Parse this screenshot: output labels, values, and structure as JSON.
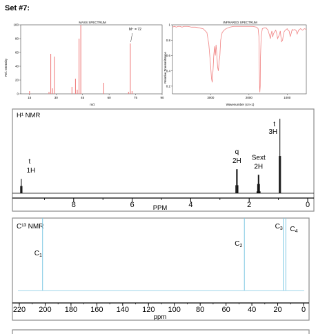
{
  "page": {
    "set_title": "Set #7:"
  },
  "chart_data": [
    {
      "type": "bar",
      "title": "MASS SPECTRUM",
      "xlabel": "m/z",
      "ylabel": "Rel. Intensity",
      "xlim": [
        10,
        90
      ],
      "ylim": [
        0,
        100
      ],
      "xticks": [
        15,
        30,
        45,
        60,
        75,
        90
      ],
      "yticks": [
        0,
        20,
        40,
        60,
        80,
        100
      ],
      "annotation": "M⁺ = 72",
      "color": "#f08080",
      "peaks": [
        {
          "x": 15,
          "y": 4
        },
        {
          "x": 26,
          "y": 3
        },
        {
          "x": 27,
          "y": 58
        },
        {
          "x": 28,
          "y": 8
        },
        {
          "x": 29,
          "y": 54
        },
        {
          "x": 39,
          "y": 10
        },
        {
          "x": 41,
          "y": 22
        },
        {
          "x": 42,
          "y": 6
        },
        {
          "x": 43,
          "y": 80
        },
        {
          "x": 44,
          "y": 100
        },
        {
          "x": 57,
          "y": 16
        },
        {
          "x": 71,
          "y": 3
        },
        {
          "x": 72,
          "y": 73
        },
        {
          "x": 73,
          "y": 4
        }
      ]
    },
    {
      "type": "line",
      "title": "INFRARED SPECTRUM",
      "xlabel": "Wavenumber (cm-1)",
      "ylabel": "Relative Transmittance",
      "xlim": [
        4000,
        500
      ],
      "ylim": [
        0.1,
        1.0
      ],
      "xticks": [
        3000,
        2000,
        1000
      ],
      "yticks": [
        0.2,
        0.4,
        0.6,
        0.8,
        1
      ],
      "color": "#f08080",
      "x": [
        4000,
        3950,
        3900,
        3850,
        3800,
        3750,
        3700,
        3600,
        3500,
        3400,
        3300,
        3200,
        3100,
        3050,
        3000,
        2980,
        2960,
        2940,
        2920,
        2900,
        2880,
        2860,
        2840,
        2820,
        2800,
        2780,
        2760,
        2740,
        2720,
        2700,
        2650,
        2600,
        2500,
        2400,
        2300,
        2200,
        2100,
        2000,
        1900,
        1800,
        1760,
        1740,
        1730,
        1720,
        1715,
        1705,
        1700,
        1680,
        1650,
        1600,
        1550,
        1500,
        1460,
        1440,
        1420,
        1400,
        1380,
        1360,
        1340,
        1300,
        1280,
        1250,
        1200,
        1180,
        1150,
        1120,
        1100,
        1080,
        1050,
        1000,
        980,
        950,
        920,
        900,
        870,
        850,
        800,
        760,
        740,
        700,
        650,
        600,
        550,
        500
      ],
      "y": [
        0.97,
        0.98,
        0.97,
        0.98,
        0.98,
        0.97,
        0.98,
        0.98,
        0.97,
        0.97,
        0.96,
        0.95,
        0.9,
        0.75,
        0.45,
        0.3,
        0.25,
        0.4,
        0.6,
        0.72,
        0.6,
        0.74,
        0.62,
        0.45,
        0.4,
        0.52,
        0.6,
        0.8,
        0.85,
        0.9,
        0.93,
        0.95,
        0.97,
        0.98,
        0.98,
        0.98,
        0.98,
        0.98,
        0.98,
        0.97,
        0.95,
        0.85,
        0.45,
        0.18,
        0.12,
        0.2,
        0.55,
        0.85,
        0.95,
        0.96,
        0.96,
        0.93,
        0.86,
        0.82,
        0.88,
        0.92,
        0.84,
        0.88,
        0.9,
        0.93,
        0.9,
        0.82,
        0.88,
        0.92,
        0.78,
        0.8,
        0.87,
        0.91,
        0.93,
        0.95,
        0.93,
        0.92,
        0.85,
        0.88,
        0.94,
        0.93,
        0.94,
        0.92,
        0.88,
        0.93,
        0.95,
        0.93,
        0.95,
        0.94
      ]
    },
    {
      "type": "line",
      "title": "H¹ NMR",
      "xlabel": "PPM",
      "xlim": [
        10,
        0
      ],
      "xticks": [
        8,
        6,
        4,
        2,
        0
      ],
      "color": "#000000",
      "peaks": [
        {
          "ppm": 9.79,
          "height": 0.18,
          "mult": "t",
          "integration": "1H",
          "n": 3,
          "sep": 0.025
        },
        {
          "ppm": 2.42,
          "height": 0.3,
          "mult": "q",
          "integration": "2H",
          "n": 4,
          "sep": 0.025
        },
        {
          "ppm": 1.68,
          "height": 0.23,
          "mult": "Sext",
          "integration": "2H",
          "n": 6,
          "sep": 0.022
        },
        {
          "ppm": 0.95,
          "height": 0.93,
          "mult": "t",
          "integration": "3H",
          "n": 3,
          "sep": 0.025
        }
      ]
    },
    {
      "type": "line",
      "title": "C¹³ NMR",
      "xlabel": "ppm",
      "xlim": [
        220,
        0
      ],
      "xticks": [
        220,
        200,
        180,
        160,
        140,
        120,
        100,
        80,
        60,
        40,
        20,
        0
      ],
      "color": "#7ec8e3",
      "peaks": [
        {
          "ppm": 202,
          "label": "C",
          "sub": "1"
        },
        {
          "ppm": 45.8,
          "label": "C",
          "sub": "2"
        },
        {
          "ppm": 15.7,
          "label": "C",
          "sub": "3"
        },
        {
          "ppm": 13.7,
          "label": "C",
          "sub": "4"
        }
      ]
    }
  ]
}
